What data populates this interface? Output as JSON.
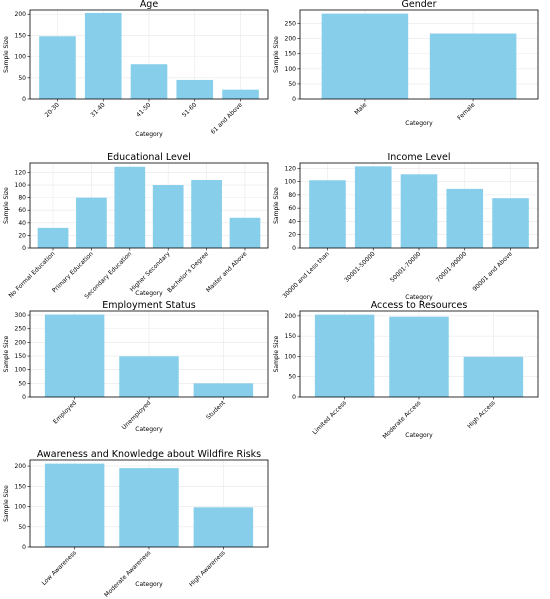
{
  "figure": {
    "bar_color": "#87CEEB",
    "grid": true,
    "xlabel": "Category",
    "ylabel": "Sample Size"
  },
  "chart_data": [
    {
      "type": "bar",
      "title": "Age",
      "xlabel": "Category",
      "ylabel": "Sample Size",
      "categories": [
        "20-30",
        "31-40",
        "41-50",
        "51-60",
        "61 and Above"
      ],
      "values": [
        148,
        203,
        82,
        45,
        22
      ],
      "ylim": [
        0,
        210
      ],
      "yticks": [
        0,
        50,
        100,
        150,
        200
      ]
    },
    {
      "type": "bar",
      "title": "Gender",
      "xlabel": "Category",
      "ylabel": "Sample Size",
      "categories": [
        "Male",
        "Female"
      ],
      "values": [
        283,
        217
      ],
      "ylim": [
        0,
        295
      ],
      "yticks": [
        0,
        50,
        100,
        150,
        200,
        250
      ]
    },
    {
      "type": "bar",
      "title": "Educational Level",
      "xlabel": "Category",
      "ylabel": "Sample Size",
      "categories": [
        "No Formal Education",
        "Primary Education",
        "Secondary Education",
        "Higher Secondary",
        "Bachelor's Degree",
        "Master and Above"
      ],
      "values": [
        32,
        80,
        129,
        100,
        108,
        48
      ],
      "ylim": [
        0,
        135
      ],
      "yticks": [
        0,
        20,
        40,
        60,
        80,
        100,
        120
      ]
    },
    {
      "type": "bar",
      "title": "Income Level",
      "xlabel": "Category",
      "ylabel": "Sample Size",
      "categories": [
        "30000 and Less than",
        "30001-50000",
        "50001-70000",
        "70001-90000",
        "90001 and Above"
      ],
      "values": [
        102,
        123,
        111,
        89,
        75
      ],
      "ylim": [
        0,
        128
      ],
      "yticks": [
        0,
        20,
        40,
        60,
        80,
        100,
        120
      ]
    },
    {
      "type": "bar",
      "title": "Employment Status",
      "xlabel": "Category",
      "ylabel": "Sample Size",
      "categories": [
        "Employed",
        "Unemployed",
        "Student"
      ],
      "values": [
        302,
        149,
        50
      ],
      "ylim": [
        0,
        315
      ],
      "yticks": [
        0,
        50,
        100,
        150,
        200,
        250,
        300
      ]
    },
    {
      "type": "bar",
      "title": "Access to Resources",
      "xlabel": "Category",
      "ylabel": "Sample Size",
      "categories": [
        "Limited Access",
        "Moderate Access",
        "High Access"
      ],
      "values": [
        203,
        198,
        99
      ],
      "ylim": [
        0,
        212
      ],
      "yticks": [
        0,
        50,
        100,
        150,
        200
      ]
    },
    {
      "type": "bar",
      "title": "Awareness and Knowledge about Wildfire Risks",
      "xlabel": "Category",
      "ylabel": "Sample Size",
      "categories": [
        "Low Awareness",
        "Moderate Awareness",
        "High Awareness"
      ],
      "values": [
        206,
        195,
        98
      ],
      "ylim": [
        0,
        215
      ],
      "yticks": [
        0,
        50,
        100,
        150,
        200
      ]
    }
  ]
}
